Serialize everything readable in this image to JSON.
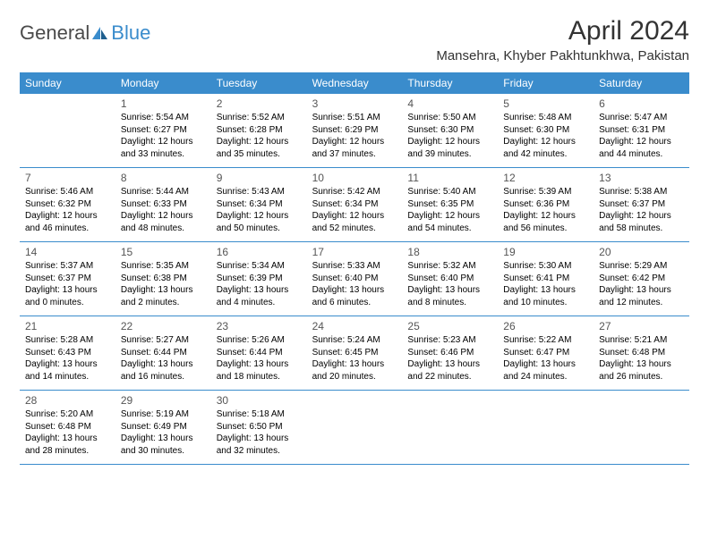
{
  "brand": {
    "part1": "General",
    "part2": "Blue"
  },
  "title": "April 2024",
  "location": "Mansehra, Khyber Pakhtunkhwa, Pakistan",
  "weekdays": [
    "Sunday",
    "Monday",
    "Tuesday",
    "Wednesday",
    "Thursday",
    "Friday",
    "Saturday"
  ],
  "colors": {
    "accent": "#3a8ccc",
    "text": "#000000",
    "header_text": "#ffffff"
  },
  "weeks": [
    [
      null,
      {
        "n": "1",
        "sr": "Sunrise: 5:54 AM",
        "ss": "Sunset: 6:27 PM",
        "d1": "Daylight: 12 hours",
        "d2": "and 33 minutes."
      },
      {
        "n": "2",
        "sr": "Sunrise: 5:52 AM",
        "ss": "Sunset: 6:28 PM",
        "d1": "Daylight: 12 hours",
        "d2": "and 35 minutes."
      },
      {
        "n": "3",
        "sr": "Sunrise: 5:51 AM",
        "ss": "Sunset: 6:29 PM",
        "d1": "Daylight: 12 hours",
        "d2": "and 37 minutes."
      },
      {
        "n": "4",
        "sr": "Sunrise: 5:50 AM",
        "ss": "Sunset: 6:30 PM",
        "d1": "Daylight: 12 hours",
        "d2": "and 39 minutes."
      },
      {
        "n": "5",
        "sr": "Sunrise: 5:48 AM",
        "ss": "Sunset: 6:30 PM",
        "d1": "Daylight: 12 hours",
        "d2": "and 42 minutes."
      },
      {
        "n": "6",
        "sr": "Sunrise: 5:47 AM",
        "ss": "Sunset: 6:31 PM",
        "d1": "Daylight: 12 hours",
        "d2": "and 44 minutes."
      }
    ],
    [
      {
        "n": "7",
        "sr": "Sunrise: 5:46 AM",
        "ss": "Sunset: 6:32 PM",
        "d1": "Daylight: 12 hours",
        "d2": "and 46 minutes."
      },
      {
        "n": "8",
        "sr": "Sunrise: 5:44 AM",
        "ss": "Sunset: 6:33 PM",
        "d1": "Daylight: 12 hours",
        "d2": "and 48 minutes."
      },
      {
        "n": "9",
        "sr": "Sunrise: 5:43 AM",
        "ss": "Sunset: 6:34 PM",
        "d1": "Daylight: 12 hours",
        "d2": "and 50 minutes."
      },
      {
        "n": "10",
        "sr": "Sunrise: 5:42 AM",
        "ss": "Sunset: 6:34 PM",
        "d1": "Daylight: 12 hours",
        "d2": "and 52 minutes."
      },
      {
        "n": "11",
        "sr": "Sunrise: 5:40 AM",
        "ss": "Sunset: 6:35 PM",
        "d1": "Daylight: 12 hours",
        "d2": "and 54 minutes."
      },
      {
        "n": "12",
        "sr": "Sunrise: 5:39 AM",
        "ss": "Sunset: 6:36 PM",
        "d1": "Daylight: 12 hours",
        "d2": "and 56 minutes."
      },
      {
        "n": "13",
        "sr": "Sunrise: 5:38 AM",
        "ss": "Sunset: 6:37 PM",
        "d1": "Daylight: 12 hours",
        "d2": "and 58 minutes."
      }
    ],
    [
      {
        "n": "14",
        "sr": "Sunrise: 5:37 AM",
        "ss": "Sunset: 6:37 PM",
        "d1": "Daylight: 13 hours",
        "d2": "and 0 minutes."
      },
      {
        "n": "15",
        "sr": "Sunrise: 5:35 AM",
        "ss": "Sunset: 6:38 PM",
        "d1": "Daylight: 13 hours",
        "d2": "and 2 minutes."
      },
      {
        "n": "16",
        "sr": "Sunrise: 5:34 AM",
        "ss": "Sunset: 6:39 PM",
        "d1": "Daylight: 13 hours",
        "d2": "and 4 minutes."
      },
      {
        "n": "17",
        "sr": "Sunrise: 5:33 AM",
        "ss": "Sunset: 6:40 PM",
        "d1": "Daylight: 13 hours",
        "d2": "and 6 minutes."
      },
      {
        "n": "18",
        "sr": "Sunrise: 5:32 AM",
        "ss": "Sunset: 6:40 PM",
        "d1": "Daylight: 13 hours",
        "d2": "and 8 minutes."
      },
      {
        "n": "19",
        "sr": "Sunrise: 5:30 AM",
        "ss": "Sunset: 6:41 PM",
        "d1": "Daylight: 13 hours",
        "d2": "and 10 minutes."
      },
      {
        "n": "20",
        "sr": "Sunrise: 5:29 AM",
        "ss": "Sunset: 6:42 PM",
        "d1": "Daylight: 13 hours",
        "d2": "and 12 minutes."
      }
    ],
    [
      {
        "n": "21",
        "sr": "Sunrise: 5:28 AM",
        "ss": "Sunset: 6:43 PM",
        "d1": "Daylight: 13 hours",
        "d2": "and 14 minutes."
      },
      {
        "n": "22",
        "sr": "Sunrise: 5:27 AM",
        "ss": "Sunset: 6:44 PM",
        "d1": "Daylight: 13 hours",
        "d2": "and 16 minutes."
      },
      {
        "n": "23",
        "sr": "Sunrise: 5:26 AM",
        "ss": "Sunset: 6:44 PM",
        "d1": "Daylight: 13 hours",
        "d2": "and 18 minutes."
      },
      {
        "n": "24",
        "sr": "Sunrise: 5:24 AM",
        "ss": "Sunset: 6:45 PM",
        "d1": "Daylight: 13 hours",
        "d2": "and 20 minutes."
      },
      {
        "n": "25",
        "sr": "Sunrise: 5:23 AM",
        "ss": "Sunset: 6:46 PM",
        "d1": "Daylight: 13 hours",
        "d2": "and 22 minutes."
      },
      {
        "n": "26",
        "sr": "Sunrise: 5:22 AM",
        "ss": "Sunset: 6:47 PM",
        "d1": "Daylight: 13 hours",
        "d2": "and 24 minutes."
      },
      {
        "n": "27",
        "sr": "Sunrise: 5:21 AM",
        "ss": "Sunset: 6:48 PM",
        "d1": "Daylight: 13 hours",
        "d2": "and 26 minutes."
      }
    ],
    [
      {
        "n": "28",
        "sr": "Sunrise: 5:20 AM",
        "ss": "Sunset: 6:48 PM",
        "d1": "Daylight: 13 hours",
        "d2": "and 28 minutes."
      },
      {
        "n": "29",
        "sr": "Sunrise: 5:19 AM",
        "ss": "Sunset: 6:49 PM",
        "d1": "Daylight: 13 hours",
        "d2": "and 30 minutes."
      },
      {
        "n": "30",
        "sr": "Sunrise: 5:18 AM",
        "ss": "Sunset: 6:50 PM",
        "d1": "Daylight: 13 hours",
        "d2": "and 32 minutes."
      },
      null,
      null,
      null,
      null
    ]
  ]
}
